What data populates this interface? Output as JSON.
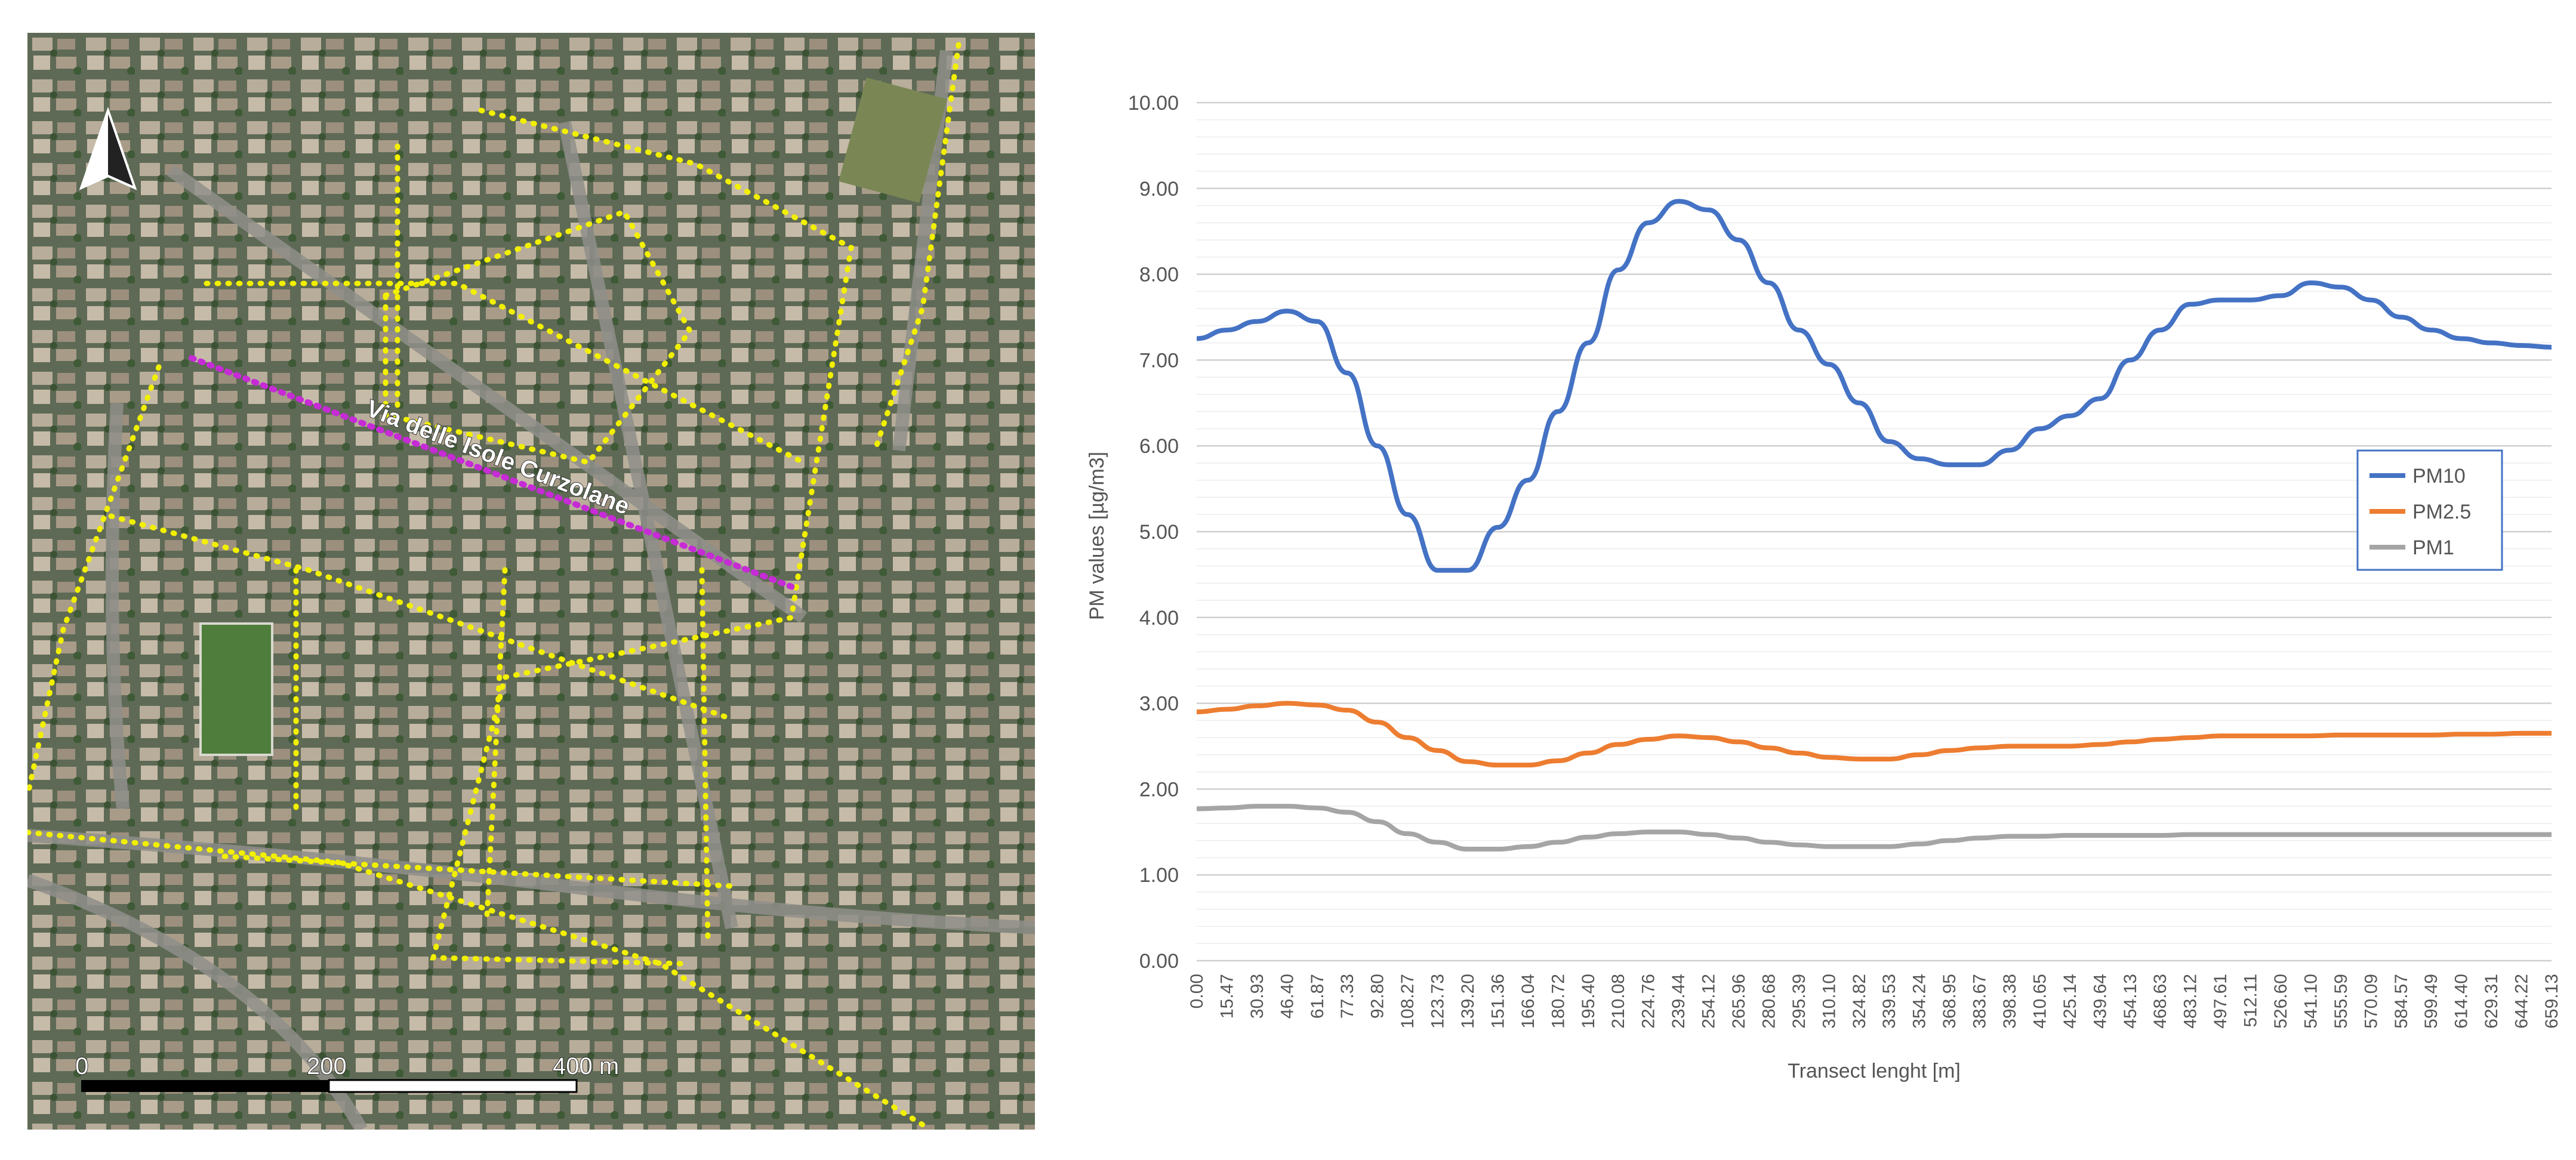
{
  "map": {
    "street_label": "Via delle Isole Curzolane",
    "scale_labels": [
      "0",
      "200",
      "400 m"
    ],
    "north_arrow_icon": "north-arrow-icon",
    "colors": {
      "track": "#f2f000",
      "transect": "#c62bd6",
      "vegetation": "#3f5a36",
      "buildings": "#b9ae9c"
    }
  },
  "chart_data": {
    "type": "line",
    "xlabel": "Transect lenght [m]",
    "ylabel": "PM values [µg/m3]",
    "ylim": [
      0,
      10
    ],
    "yticks": [
      "0.00",
      "1.00",
      "2.00",
      "3.00",
      "4.00",
      "5.00",
      "6.00",
      "7.00",
      "8.00",
      "9.00",
      "10.00"
    ],
    "x_tick_labels": [
      "0.00",
      "15.47",
      "30.93",
      "46.40",
      "61.87",
      "77.33",
      "92.80",
      "108.27",
      "123.73",
      "139.20",
      "151.36",
      "166.04",
      "180.72",
      "195.40",
      "210.08",
      "224.76",
      "239.44",
      "254.12",
      "265.96",
      "280.68",
      "295.39",
      "310.10",
      "324.82",
      "339.53",
      "354.24",
      "368.95",
      "383.67",
      "398.38",
      "410.65",
      "425.14",
      "439.64",
      "454.13",
      "468.63",
      "483.12",
      "497.61",
      "512.11",
      "526.60",
      "541.10",
      "555.59",
      "570.09",
      "584.57",
      "599.49",
      "614.40",
      "629.31",
      "644.22",
      "659.13"
    ],
    "x": [
      0,
      15.47,
      30.93,
      46.4,
      61.87,
      77.33,
      92.8,
      108.27,
      123.73,
      139.2,
      151.36,
      166.04,
      180.72,
      195.4,
      210.08,
      224.76,
      239.44,
      254.12,
      265.96,
      280.68,
      295.39,
      310.1,
      324.82,
      339.53,
      354.24,
      368.95,
      383.67,
      398.38,
      410.65,
      425.14,
      439.64,
      454.13,
      468.63,
      483.12,
      497.61,
      512.11,
      526.6,
      541.1,
      555.59,
      570.09,
      584.57,
      599.49,
      614.4,
      629.31,
      644.22,
      659.13
    ],
    "series": [
      {
        "name": "PM10",
        "color": "#4472c4",
        "values": [
          7.25,
          7.35,
          7.45,
          7.57,
          7.45,
          6.85,
          6.0,
          5.2,
          4.55,
          4.55,
          5.05,
          5.6,
          6.4,
          7.2,
          8.05,
          8.6,
          8.85,
          8.75,
          8.4,
          7.9,
          7.35,
          6.95,
          6.5,
          6.05,
          5.85,
          5.78,
          5.78,
          5.95,
          6.2,
          6.35,
          6.55,
          7.0,
          7.35,
          7.65,
          7.7,
          7.7,
          7.75,
          7.9,
          7.85,
          7.7,
          7.5,
          7.35,
          7.25,
          7.2,
          7.17,
          7.15
        ]
      },
      {
        "name": "PM2.5",
        "color": "#ed7d31",
        "values": [
          2.9,
          2.93,
          2.97,
          3.0,
          2.98,
          2.92,
          2.78,
          2.6,
          2.45,
          2.32,
          2.28,
          2.28,
          2.33,
          2.42,
          2.52,
          2.58,
          2.62,
          2.6,
          2.55,
          2.48,
          2.42,
          2.37,
          2.35,
          2.35,
          2.4,
          2.45,
          2.48,
          2.5,
          2.5,
          2.5,
          2.52,
          2.55,
          2.58,
          2.6,
          2.62,
          2.62,
          2.62,
          2.62,
          2.63,
          2.63,
          2.63,
          2.63,
          2.64,
          2.64,
          2.65,
          2.65
        ]
      },
      {
        "name": "PM1",
        "color": "#a5a5a5",
        "values": [
          1.77,
          1.78,
          1.8,
          1.8,
          1.78,
          1.73,
          1.62,
          1.48,
          1.38,
          1.3,
          1.3,
          1.33,
          1.38,
          1.44,
          1.48,
          1.5,
          1.5,
          1.47,
          1.43,
          1.38,
          1.35,
          1.33,
          1.33,
          1.33,
          1.36,
          1.4,
          1.43,
          1.45,
          1.45,
          1.46,
          1.46,
          1.46,
          1.46,
          1.47,
          1.47,
          1.47,
          1.47,
          1.47,
          1.47,
          1.47,
          1.47,
          1.47,
          1.47,
          1.47,
          1.47,
          1.47
        ]
      }
    ],
    "legend": {
      "entries": [
        "PM10",
        "PM2.5",
        "PM1"
      ],
      "position": "right"
    },
    "grid": true
  }
}
